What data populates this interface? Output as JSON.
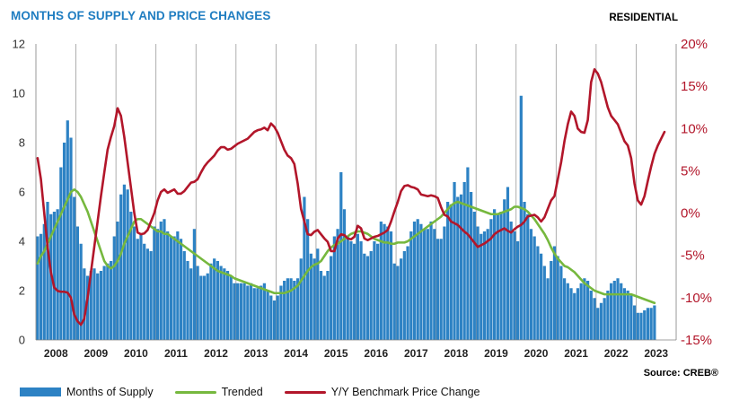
{
  "header": {
    "title": "MONTHS OF SUPPLY AND PRICE CHANGES",
    "tag": "RESIDENTIAL"
  },
  "source": "Source: CREB®",
  "legend": {
    "bars": "Months of Supply",
    "trend": "Trended",
    "price": "Y/Y Benchmark Price Change"
  },
  "colors": {
    "bars": "#2d82c4",
    "trend": "#76b83e",
    "price": "#b2162a",
    "title": "#1f7dc1"
  },
  "chart_data": {
    "type": "bar+line",
    "title": "MONTHS OF SUPPLY AND PRICE CHANGES",
    "categories": [
      "2008",
      "2009",
      "2010",
      "2011",
      "2012",
      "2013",
      "2014",
      "2015",
      "2016",
      "2017",
      "2018",
      "2019",
      "2020",
      "2021",
      "2022",
      "2023"
    ],
    "y_left": {
      "min": 0,
      "max": 12,
      "ticks": [
        "0",
        "2",
        "4",
        "6",
        "8",
        "10",
        "12"
      ]
    },
    "y_right": {
      "min": -15,
      "max": 20,
      "ticks": [
        "-15%",
        "-10%",
        "-5%",
        "0%",
        "5%",
        "10%",
        "15%",
        "20%"
      ]
    },
    "supply": {
      "name": "Months of Supply",
      "yearly": [
        [
          4.2,
          4.3,
          4.7,
          5.6,
          5.1,
          5.2,
          5.3,
          7.0,
          8.0,
          8.9,
          8.2,
          5.8
        ],
        [
          4.6,
          3.9,
          2.9,
          2.6,
          2.8,
          2.9,
          2.7,
          2.8,
          3.0,
          3.1,
          3.2,
          4.2
        ],
        [
          4.8,
          5.9,
          6.3,
          6.1,
          5.2,
          4.6,
          4.1,
          4.3,
          3.9,
          3.7,
          3.6,
          4.6
        ],
        [
          4.5,
          4.8,
          4.9,
          4.4,
          4.2,
          4.2,
          4.4,
          4.1,
          3.6,
          3.2,
          2.9,
          4.5
        ],
        [
          3.0,
          2.6,
          2.6,
          2.7,
          3.1,
          3.3,
          3.2,
          3.0,
          2.9,
          2.8,
          2.6,
          2.3
        ],
        [
          2.3,
          2.3,
          2.3,
          2.2,
          2.3,
          2.1,
          2.1,
          2.2,
          2.3,
          2.0,
          1.8,
          1.6
        ],
        [
          1.8,
          2.2,
          2.4,
          2.5,
          2.5,
          2.4,
          2.5,
          3.3,
          5.8,
          4.9,
          3.5,
          3.3
        ],
        [
          3.7,
          2.8,
          2.6,
          2.8,
          3.4,
          4.2,
          4.5,
          6.8,
          5.3,
          4.2,
          4.0,
          3.9
        ],
        [
          4.3,
          4.0,
          3.5,
          3.4,
          3.6,
          4.0,
          3.9,
          4.8,
          4.7,
          4.6,
          4.4,
          3.1
        ],
        [
          3.0,
          3.3,
          3.6,
          3.8,
          4.4,
          4.8,
          4.9,
          4.7,
          4.5,
          4.5,
          4.8,
          4.5
        ],
        [
          4.1,
          4.1,
          4.6,
          5.6,
          5.5,
          6.4,
          5.8,
          5.9,
          6.4,
          7.0,
          6.0,
          5.2
        ],
        [
          4.6,
          4.3,
          4.4,
          4.5,
          4.9,
          5.3,
          5.1,
          5.2,
          5.7,
          6.2,
          4.8,
          4.4
        ],
        [
          4.0,
          9.9,
          5.6,
          5.1,
          4.5,
          4.2,
          3.8,
          3.5,
          3.0,
          2.5,
          3.2,
          3.8
        ],
        [
          3.4,
          3.0,
          2.5,
          2.3,
          2.1,
          1.9,
          2.1,
          2.3,
          2.5,
          2.4,
          2.0,
          1.7
        ],
        [
          1.3,
          1.5,
          1.7,
          2.0,
          2.3,
          2.4,
          2.5,
          2.3,
          2.1,
          2.0,
          1.8,
          1.4
        ],
        [
          1.1,
          1.1,
          1.2,
          1.3,
          1.3,
          1.4
        ]
      ]
    },
    "trend": {
      "name": "Trended",
      "yearly": [
        [
          3.1,
          3.4,
          3.6,
          3.9,
          4.2,
          4.5,
          4.8,
          5.1,
          5.4,
          5.7,
          6.0,
          6.1
        ],
        [
          6.0,
          5.8,
          5.5,
          5.2,
          4.8,
          4.4,
          4.0,
          3.6,
          3.2,
          3.0,
          2.9,
          3.0
        ],
        [
          3.2,
          3.5,
          3.9,
          4.2,
          4.5,
          4.8,
          4.9,
          4.9,
          4.8,
          4.7,
          4.6,
          4.5
        ],
        [
          4.4,
          4.4,
          4.3,
          4.3,
          4.2,
          4.1,
          4.0,
          3.9,
          3.8,
          3.7,
          3.6,
          3.5
        ],
        [
          3.4,
          3.3,
          3.2,
          3.1,
          3.0,
          2.9,
          2.8,
          2.75,
          2.7,
          2.65,
          2.6,
          2.5
        ],
        [
          2.45,
          2.4,
          2.35,
          2.3,
          2.25,
          2.2,
          2.15,
          2.1,
          2.05,
          2.0,
          1.95,
          1.9
        ],
        [
          1.9,
          1.9,
          1.9,
          1.95,
          2.0,
          2.1,
          2.2,
          2.4,
          2.6,
          2.8,
          2.95,
          3.05
        ],
        [
          3.1,
          3.2,
          3.4,
          3.6,
          3.75,
          3.85,
          3.9,
          4.0,
          4.1,
          4.2,
          4.3,
          4.35
        ],
        [
          4.4,
          4.4,
          4.35,
          4.3,
          4.2,
          4.1,
          4.05,
          4.0,
          3.95,
          3.95,
          3.9,
          3.9
        ],
        [
          3.95,
          3.95,
          3.95,
          4.0,
          4.1,
          4.2,
          4.3,
          4.4,
          4.5,
          4.6,
          4.7,
          4.8
        ],
        [
          4.9,
          5.0,
          5.15,
          5.3,
          5.45,
          5.55,
          5.6,
          5.55,
          5.5,
          5.45,
          5.4,
          5.35
        ],
        [
          5.3,
          5.25,
          5.2,
          5.15,
          5.1,
          5.1,
          5.1,
          5.15,
          5.2,
          5.25,
          5.3,
          5.4
        ],
        [
          5.4,
          5.35,
          5.3,
          5.2,
          5.05,
          4.9,
          4.7,
          4.5,
          4.3,
          4.05,
          3.75,
          3.5
        ],
        [
          3.3,
          3.15,
          3.0,
          2.95,
          2.85,
          2.75,
          2.6,
          2.45,
          2.3,
          2.2,
          2.1,
          2.0
        ],
        [
          1.95,
          1.9,
          1.85,
          1.85,
          1.85,
          1.85,
          1.85,
          1.85,
          1.85,
          1.85,
          1.85,
          1.8
        ],
        [
          1.75,
          1.7,
          1.65,
          1.6,
          1.55,
          1.5
        ]
      ]
    },
    "price_change": {
      "name": "Y/Y Benchmark Price Change",
      "yearly": [
        [
          6.5,
          4.0,
          0.0,
          -4.0,
          -7.0,
          -8.8,
          -9.2,
          -9.3,
          -9.3,
          -9.4,
          -10.0,
          -12.0
        ],
        [
          -12.8,
          -13.2,
          -12.5,
          -10.0,
          -7.0,
          -4.0,
          -1.0,
          2.0,
          4.8,
          7.5,
          9.0,
          10.3
        ],
        [
          12.4,
          11.5,
          9.0,
          6.0,
          3.0,
          0.0,
          -2.3,
          -2.5,
          -2.4,
          -2.0,
          -1.0,
          0.0
        ],
        [
          1.5,
          2.5,
          2.8,
          2.4,
          2.6,
          2.8,
          2.3,
          2.3,
          2.6,
          3.1,
          3.6,
          3.7
        ],
        [
          4.0,
          4.8,
          5.5,
          6.0,
          6.4,
          6.8,
          7.4,
          7.8,
          7.8,
          7.5,
          7.6,
          7.9
        ],
        [
          8.2,
          8.4,
          8.6,
          8.8,
          9.2,
          9.6,
          9.8,
          9.9,
          10.1,
          9.8,
          10.6,
          10.2
        ],
        [
          9.5,
          8.5,
          7.5,
          6.8,
          6.5,
          5.8,
          3.5,
          0.5,
          -1.0,
          -2.5,
          -2.6,
          -2.2
        ],
        [
          -2.0,
          -2.5,
          -3.0,
          -3.4,
          -4.5,
          -4.5,
          -3.0,
          -2.5,
          -2.6,
          -3.0,
          -3.1,
          -2.8
        ],
        [
          -1.5,
          -1.8,
          -3.0,
          -3.2,
          -3.0,
          -2.8,
          -2.7,
          -2.5,
          -2.3,
          -2.0,
          -1.0,
          0.2
        ],
        [
          1.3,
          2.6,
          3.2,
          3.3,
          3.1,
          3.0,
          2.8,
          2.2,
          2.1,
          2.0,
          2.1,
          2.0
        ],
        [
          1.8,
          0.7,
          -0.2,
          -0.4,
          -1.0,
          -1.2,
          -1.4,
          -1.8,
          -2.2,
          -2.5,
          -3.0,
          -3.5
        ],
        [
          -4.0,
          -3.8,
          -3.6,
          -3.3,
          -3.0,
          -2.5,
          -2.2,
          -2.0,
          -1.8,
          -2.1,
          -2.3,
          -1.9
        ],
        [
          -1.6,
          -1.4,
          -1.0,
          -0.4,
          -0.3,
          -0.2,
          -0.5,
          -1.0,
          -0.5,
          0.5,
          1.5,
          2.0
        ],
        [
          4.0,
          6.0,
          8.5,
          10.5,
          12.0,
          11.5,
          10.0,
          9.6,
          9.5,
          11.0,
          15.5,
          17.0
        ],
        [
          16.5,
          15.5,
          14.0,
          12.5,
          11.5,
          11.0,
          10.5,
          9.5,
          8.5,
          8.0,
          6.5,
          3.5
        ],
        [
          1.5,
          1.0,
          2.0,
          3.8,
          5.5,
          7.0,
          8.0,
          8.8,
          9.6
        ]
      ]
    }
  }
}
